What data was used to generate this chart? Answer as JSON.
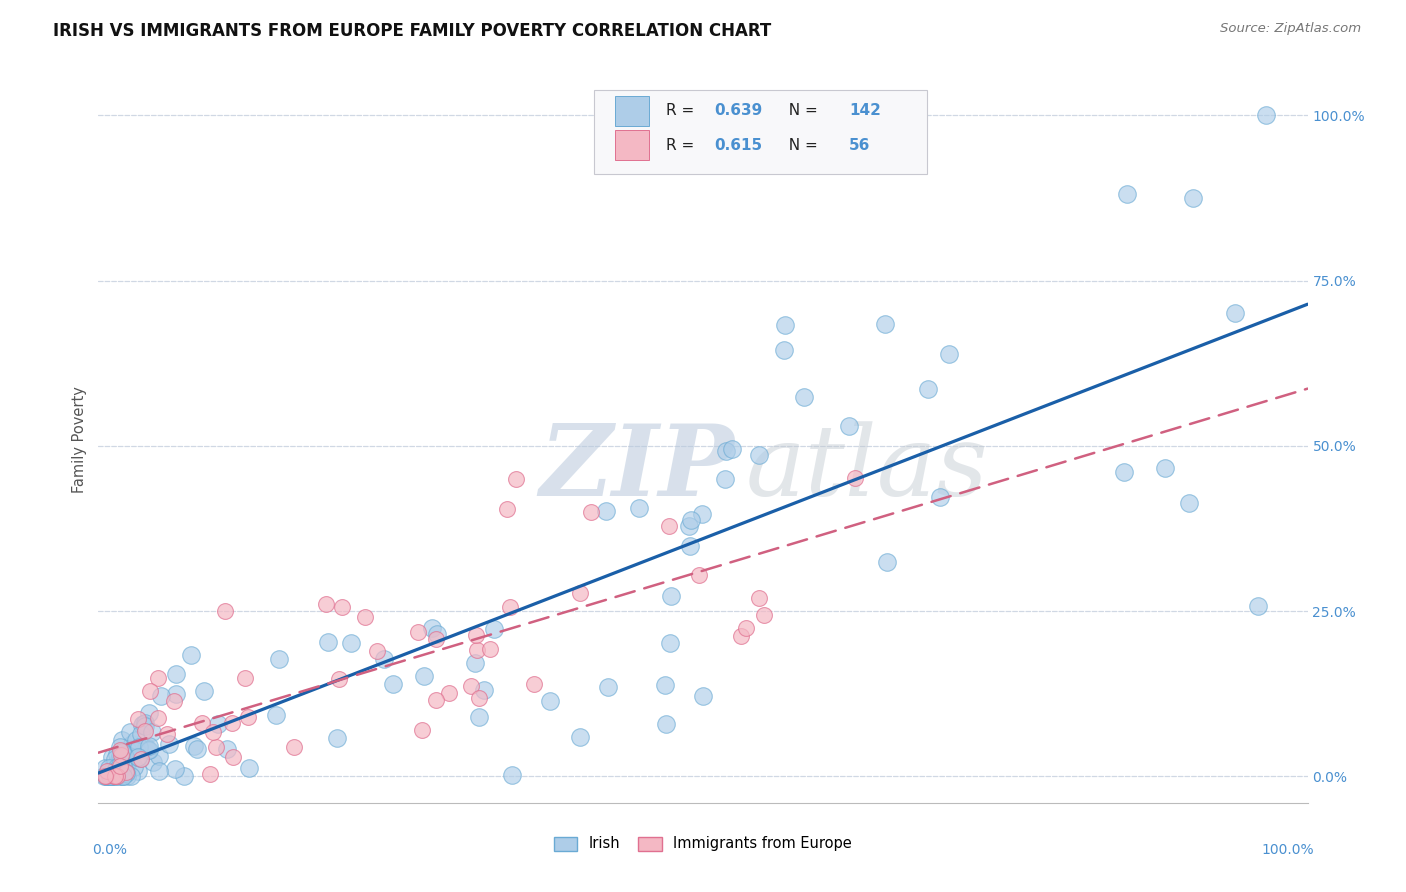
{
  "title": "IRISH VS IMMIGRANTS FROM EUROPE FAMILY POVERTY CORRELATION CHART",
  "source": "Source: ZipAtlas.com",
  "ylabel": "Family Poverty",
  "legend_irish": "Irish",
  "legend_immigrants": "Immigrants from Europe",
  "irish_R": 0.639,
  "irish_N": 142,
  "immigrants_R": 0.615,
  "immigrants_N": 56,
  "irish_color": "#aecde8",
  "irish_edge": "#6aaad4",
  "immigrants_color": "#f4b8c4",
  "immigrants_edge": "#e07090",
  "irish_line_color": "#1a5fa8",
  "immigrants_line_color": "#d06080",
  "background_color": "#ffffff",
  "grid_color": "#d0d8e4",
  "title_color": "#111111",
  "source_color": "#777777",
  "axis_label_color": "#4a90d0",
  "ylabel_color": "#555555",
  "watermark_zip_color": "#c8d4e0",
  "watermark_atlas_color": "#c8ccd0"
}
